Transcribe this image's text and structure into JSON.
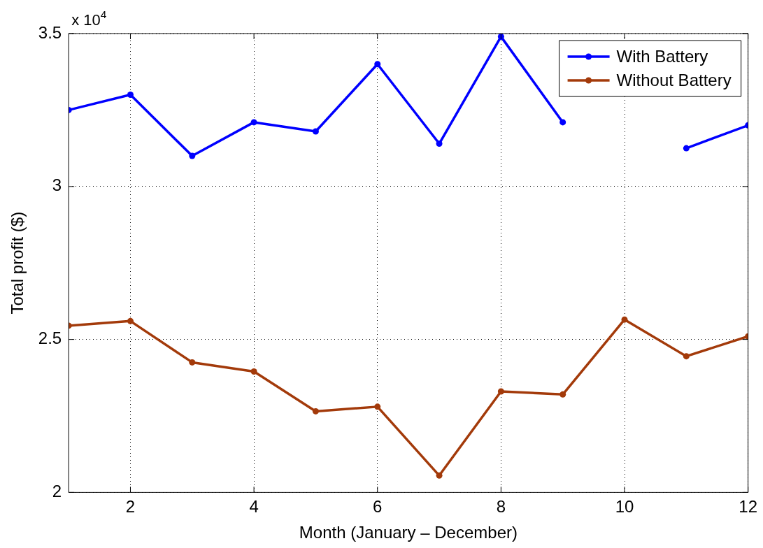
{
  "chart_data": {
    "type": "line",
    "xlabel": "Month (January – December)",
    "ylabel": "Total profit ($)",
    "annotations": [
      "x 10$^{4}$"
    ],
    "x": [
      1,
      2,
      3,
      4,
      5,
      6,
      7,
      8,
      9,
      10,
      11,
      12
    ],
    "xlim": [
      1,
      12
    ],
    "xticks": [
      2,
      4,
      6,
      8,
      10,
      12
    ],
    "ylim": [
      2,
      3.5
    ],
    "yticks": [
      2,
      2.5,
      3,
      3.5
    ],
    "series": [
      {
        "name": "With Battery",
        "color": "#0000ff",
        "values": [
          3.25,
          3.3,
          3.1,
          3.21,
          3.18,
          3.4,
          3.14,
          3.49,
          3.21,
          null,
          3.125,
          3.2
        ]
      },
      {
        "name": "Without Battery",
        "color": "#a33a0a",
        "values": [
          2.545,
          2.56,
          2.425,
          2.395,
          2.265,
          2.28,
          2.055,
          2.33,
          2.32,
          2.565,
          2.445,
          2.51
        ]
      }
    ],
    "grid": true,
    "legend": "top right",
    "marker": "circle",
    "line_style": "solid"
  }
}
